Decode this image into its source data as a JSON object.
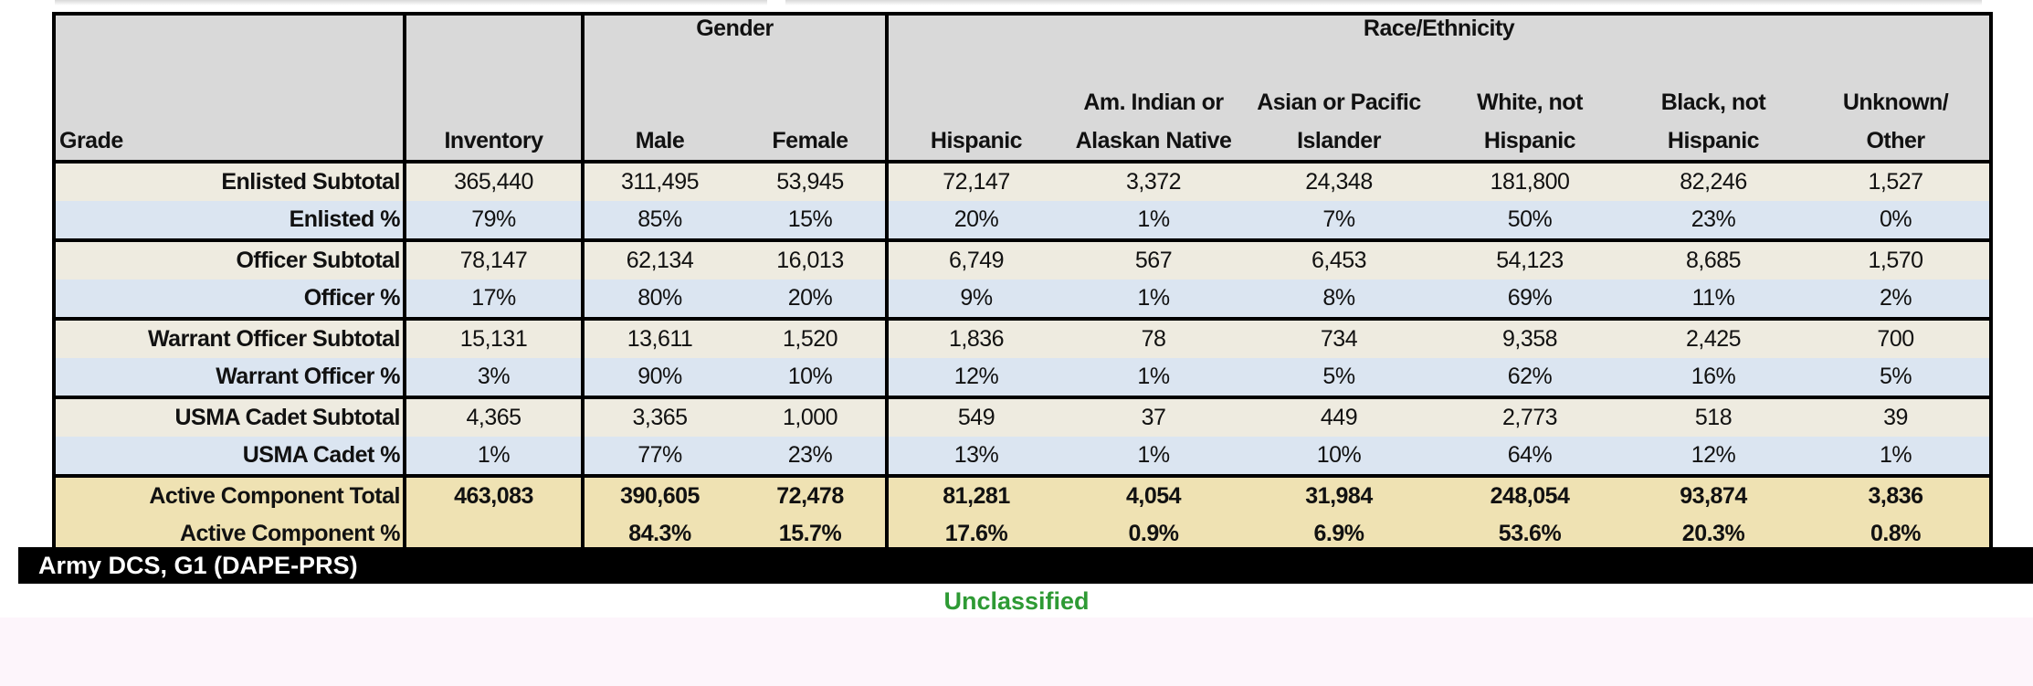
{
  "table": {
    "headers": {
      "grade": "Grade",
      "inventory": "Inventory",
      "gender_group": "Gender",
      "race_group": "Race/Ethnicity",
      "male": "Male",
      "female": "Female",
      "hispanic": "Hispanic",
      "am_indian_1": "Am. Indian or",
      "am_indian_2": "Alaskan Native",
      "asian_1": "Asian or Pacific",
      "asian_2": "Islander",
      "white_1": "White, not",
      "white_2": "Hispanic",
      "black_1": "Black, not",
      "black_2": "Hispanic",
      "unknown_1": "Unknown/",
      "unknown_2": "Other"
    },
    "rows": [
      {
        "label": "Enlisted Subtotal",
        "cells": [
          "365,440",
          "311,495",
          "53,945",
          "72,147",
          "3,372",
          "24,348",
          "181,800",
          "82,246",
          "1,527"
        ]
      },
      {
        "label": "Enlisted %",
        "cells": [
          "79%",
          "85%",
          "15%",
          "20%",
          "1%",
          "7%",
          "50%",
          "23%",
          "0%"
        ]
      },
      {
        "label": "Officer Subtotal",
        "cells": [
          "78,147",
          "62,134",
          "16,013",
          "6,749",
          "567",
          "6,453",
          "54,123",
          "8,685",
          "1,570"
        ]
      },
      {
        "label": "Officer %",
        "cells": [
          "17%",
          "80%",
          "20%",
          "9%",
          "1%",
          "8%",
          "69%",
          "11%",
          "2%"
        ]
      },
      {
        "label": "Warrant Officer Subtotal",
        "cells": [
          "15,131",
          "13,611",
          "1,520",
          "1,836",
          "78",
          "734",
          "9,358",
          "2,425",
          "700"
        ]
      },
      {
        "label": "Warrant Officer %",
        "cells": [
          "3%",
          "90%",
          "10%",
          "12%",
          "1%",
          "5%",
          "62%",
          "16%",
          "5%"
        ]
      },
      {
        "label": "USMA Cadet Subtotal",
        "cells": [
          "4,365",
          "3,365",
          "1,000",
          "549",
          "37",
          "449",
          "2,773",
          "518",
          "39"
        ]
      },
      {
        "label": "USMA Cadet %",
        "cells": [
          "1%",
          "77%",
          "23%",
          "13%",
          "1%",
          "10%",
          "64%",
          "12%",
          "1%"
        ]
      },
      {
        "label": "Active Component Total",
        "cells": [
          "463,083",
          "390,605",
          "72,478",
          "81,281",
          "4,054",
          "31,984",
          "248,054",
          "93,874",
          "3,836"
        ]
      },
      {
        "label": "Active Component %",
        "cells": [
          "",
          "84.3%",
          "15.7%",
          "17.6%",
          "0.9%",
          "6.9%",
          "53.6%",
          "20.3%",
          "0.8%"
        ]
      }
    ]
  },
  "footer": {
    "org": "Army DCS, G1 (DAPE-PRS)",
    "classification": "Unclassified"
  },
  "colors": {
    "subtotal_row": "#eeebe0",
    "percent_row": "#dbe5f1",
    "total_row": "#efe2b3",
    "header": "#d9d9d9",
    "classification": "#2e9a34"
  }
}
